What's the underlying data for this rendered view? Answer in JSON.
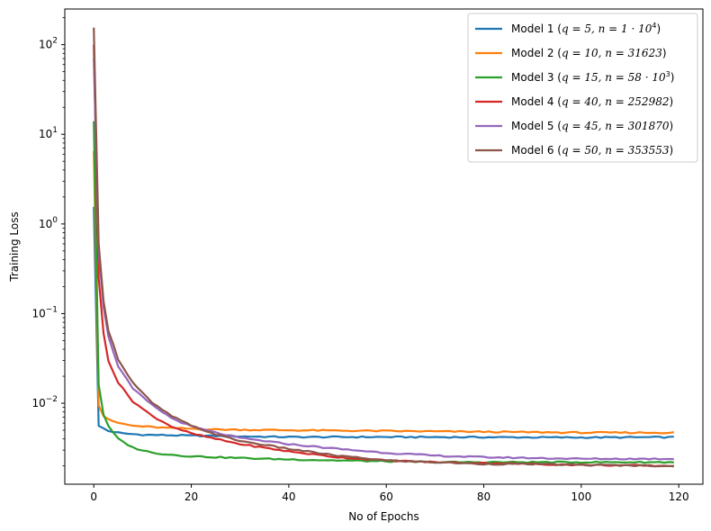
{
  "chart_data": {
    "type": "line",
    "xlabel": "No of Epochs",
    "ylabel": "Training Loss",
    "xlim": [
      -5.95,
      124.95
    ],
    "ylim": [
      0.00125,
      250
    ],
    "yscale": "log",
    "x_ticks": [
      0,
      20,
      40,
      60,
      80,
      100,
      120
    ],
    "y_ticks": [
      {
        "value": 0.01,
        "base": "10",
        "exp": "−2"
      },
      {
        "value": 0.1,
        "base": "10",
        "exp": "−1"
      },
      {
        "value": 1,
        "base": "10",
        "exp": "0"
      },
      {
        "value": 10,
        "base": "10",
        "exp": "1"
      },
      {
        "value": 100,
        "base": "10",
        "exp": "2"
      }
    ],
    "grid": false,
    "legend_position": "upper right",
    "series": [
      {
        "name": "Model 1 (q = 5, n = 1 · 10⁴)",
        "color": "#1f77b4",
        "points": [
          [
            0,
            1.55
          ],
          [
            1,
            0.0056
          ],
          [
            3,
            0.0049
          ],
          [
            6,
            0.0046
          ],
          [
            10,
            0.00445
          ],
          [
            20,
            0.00435
          ],
          [
            40,
            0.0042
          ],
          [
            60,
            0.0042
          ],
          [
            80,
            0.00418
          ],
          [
            100,
            0.00415
          ],
          [
            119,
            0.00418
          ]
        ]
      },
      {
        "name": "Model 2 (q = 10, n = 31623)",
        "color": "#ff7f0e",
        "points": [
          [
            0,
            6.5
          ],
          [
            1,
            0.0095
          ],
          [
            2,
            0.0072
          ],
          [
            4,
            0.0062
          ],
          [
            8,
            0.0056
          ],
          [
            15,
            0.0053
          ],
          [
            25,
            0.0051
          ],
          [
            40,
            0.005
          ],
          [
            60,
            0.0049
          ],
          [
            80,
            0.0048
          ],
          [
            100,
            0.0047
          ],
          [
            119,
            0.0047
          ]
        ]
      },
      {
        "name": "Model 3 (q = 15, n = 58 · 10³)",
        "color": "#2ca02c",
        "points": [
          [
            0,
            14
          ],
          [
            1,
            0.016
          ],
          [
            2,
            0.0075
          ],
          [
            3,
            0.0055
          ],
          [
            5,
            0.004
          ],
          [
            8,
            0.0032
          ],
          [
            12,
            0.0028
          ],
          [
            18,
            0.0026
          ],
          [
            25,
            0.0025
          ],
          [
            35,
            0.0024
          ],
          [
            50,
            0.0023
          ],
          [
            70,
            0.0022
          ],
          [
            90,
            0.0022
          ],
          [
            119,
            0.0022
          ]
        ]
      },
      {
        "name": "Model 4 (q = 40, n = 252982)",
        "color": "#d62728",
        "points": [
          [
            0,
            100
          ],
          [
            1,
            0.25
          ],
          [
            2,
            0.06
          ],
          [
            3,
            0.03
          ],
          [
            5,
            0.017
          ],
          [
            8,
            0.0105
          ],
          [
            12,
            0.0072
          ],
          [
            16,
            0.0055
          ],
          [
            20,
            0.0046
          ],
          [
            25,
            0.004
          ],
          [
            30,
            0.0035
          ],
          [
            40,
            0.0029
          ],
          [
            50,
            0.0025
          ],
          [
            60,
            0.0023
          ],
          [
            70,
            0.0022
          ],
          [
            80,
            0.00215
          ],
          [
            90,
            0.0021
          ],
          [
            100,
            0.00205
          ],
          [
            119,
            0.002
          ]
        ]
      },
      {
        "name": "Model 5 (q = 45, n = 301870)",
        "color": "#9467bd",
        "points": [
          [
            0,
            70
          ],
          [
            1,
            0.5
          ],
          [
            2,
            0.12
          ],
          [
            3,
            0.055
          ],
          [
            5,
            0.026
          ],
          [
            8,
            0.0145
          ],
          [
            12,
            0.0095
          ],
          [
            16,
            0.0068
          ],
          [
            20,
            0.0055
          ],
          [
            25,
            0.0047
          ],
          [
            30,
            0.0041
          ],
          [
            40,
            0.0035
          ],
          [
            50,
            0.0031
          ],
          [
            60,
            0.0028
          ],
          [
            70,
            0.0026
          ],
          [
            80,
            0.0025
          ],
          [
            90,
            0.00245
          ],
          [
            100,
            0.0024
          ],
          [
            119,
            0.0024
          ]
        ]
      },
      {
        "name": "Model 6 (q = 50, n = 353553)",
        "color": "#8c564b",
        "points": [
          [
            0,
            155
          ],
          [
            1,
            0.6
          ],
          [
            2,
            0.14
          ],
          [
            3,
            0.065
          ],
          [
            5,
            0.031
          ],
          [
            8,
            0.017
          ],
          [
            12,
            0.01
          ],
          [
            16,
            0.0072
          ],
          [
            20,
            0.0056
          ],
          [
            25,
            0.0045
          ],
          [
            30,
            0.0038
          ],
          [
            40,
            0.0031
          ],
          [
            50,
            0.0026
          ],
          [
            60,
            0.0023
          ],
          [
            70,
            0.0022
          ],
          [
            80,
            0.0021
          ],
          [
            90,
            0.0021
          ],
          [
            100,
            0.00205
          ],
          [
            119,
            0.002
          ]
        ]
      }
    ],
    "legend": [
      {
        "pre": "Model 1 (",
        "math": "q = 5, n = 1 · 10",
        "sup": "4",
        "post": ")"
      },
      {
        "pre": "Model 2 (",
        "math": "q = 10, n = 31623",
        "sup": "",
        "post": ")"
      },
      {
        "pre": "Model 3 (",
        "math": "q = 15, n = 58 · 10",
        "sup": "3",
        "post": ")"
      },
      {
        "pre": "Model 4 (",
        "math": "q = 40, n = 252982",
        "sup": "",
        "post": ")"
      },
      {
        "pre": "Model 5 (",
        "math": "q = 45, n = 301870",
        "sup": "",
        "post": ")"
      },
      {
        "pre": "Model 6 (",
        "math": "q = 50, n = 353553",
        "sup": "",
        "post": ")"
      }
    ]
  }
}
